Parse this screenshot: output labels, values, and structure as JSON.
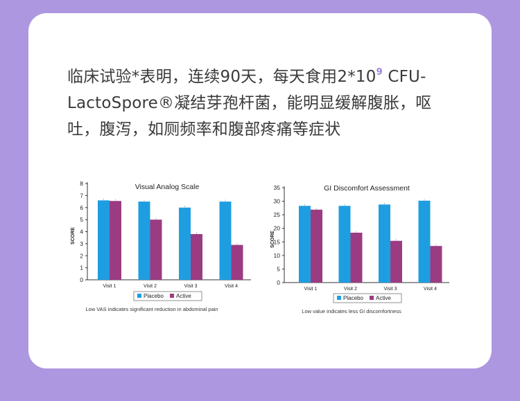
{
  "colors": {
    "background": "#ad97e0",
    "card": "#ffffff",
    "headline_text": "#3a3a3a",
    "superscript": "#9b82d8",
    "placebo": "#1e9ee0",
    "active": "#9b3c83"
  },
  "headline": {
    "line1_pre": "临床试验*表明，连续90天，每天食用2*10",
    "line1_sup": "9",
    "line1_post": " CFU-",
    "line2": "LactoSpore®凝结芽孢杆菌，能明显缓解腹胀，呕",
    "line3": "吐，腹泻，如厕频率和腹部疼痛等症状"
  },
  "chart_data": [
    {
      "type": "bar",
      "title": "Visual Analog Scale",
      "ylabel": "SCORE",
      "xlabel": "",
      "categories": [
        "Visit 1",
        "Visit 2",
        "Visit 3",
        "Visit 4"
      ],
      "series": [
        {
          "name": "Placebo",
          "values": [
            6.6,
            6.5,
            6.0,
            6.5
          ]
        },
        {
          "name": "Active",
          "values": [
            6.55,
            5.0,
            3.8,
            2.9
          ]
        }
      ],
      "ylim": [
        0,
        8
      ],
      "yticks": [
        0,
        1,
        2,
        3,
        4,
        5,
        6,
        7,
        8
      ],
      "grid": false,
      "legend_position": "bottom",
      "caption": "Low VAS indicates significant reduction in abdominal pain"
    },
    {
      "type": "bar",
      "title": "GI Discomfort Assessment",
      "ylabel": "SCORE",
      "xlabel": "",
      "categories": [
        "Visit 1",
        "Visit 2",
        "Visit 3",
        "Visit 4"
      ],
      "series": [
        {
          "name": "Placebo",
          "values": [
            28.3,
            28.3,
            28.8,
            30.2
          ]
        },
        {
          "name": "Active",
          "values": [
            26.9,
            18.4,
            15.4,
            13.5
          ]
        }
      ],
      "ylim": [
        0,
        35
      ],
      "yticks": [
        0,
        5,
        10,
        15,
        20,
        25,
        30,
        35
      ],
      "grid": false,
      "legend_position": "bottom",
      "caption": "Low value indicates less GI discomfortness"
    }
  ]
}
